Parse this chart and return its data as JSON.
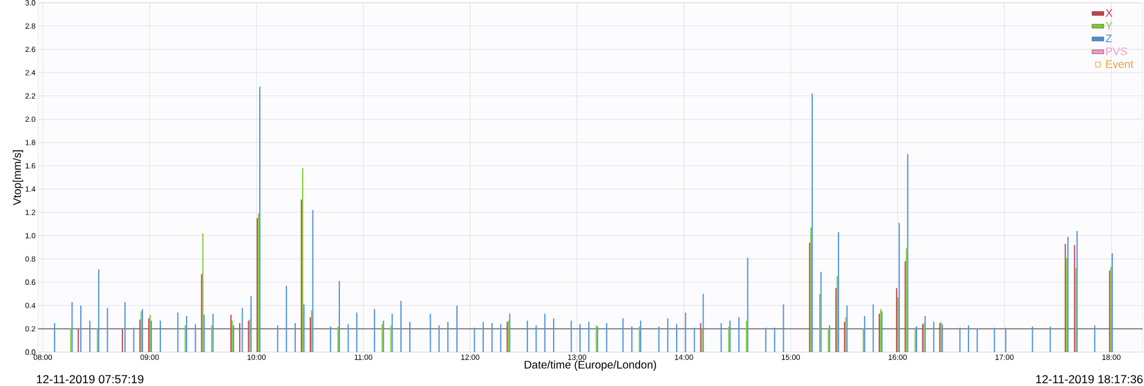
{
  "chart_data": {
    "type": "bar",
    "xlabel": "Date/time (Europe/London)",
    "ylabel": "Vtop[mm/s]",
    "x": [
      8.104,
      8.268,
      8.35,
      8.434,
      8.517,
      8.599,
      8.763,
      8.845,
      8.927,
      9.01,
      9.094,
      9.258,
      9.339,
      9.422,
      9.504,
      9.587,
      9.779,
      9.861,
      9.943,
      10.025,
      10.192,
      10.274,
      10.356,
      10.438,
      10.521,
      10.687,
      10.769,
      10.852,
      10.933,
      11.098,
      11.182,
      11.264,
      11.346,
      11.429,
      11.621,
      11.703,
      11.785,
      11.87,
      12.034,
      12.116,
      12.198,
      12.28,
      12.364,
      12.529,
      12.611,
      12.693,
      12.775,
      12.94,
      13.022,
      13.104,
      13.186,
      13.271,
      13.424,
      13.507,
      13.589,
      13.76,
      13.843,
      13.926,
      14.009,
      14.092,
      14.175,
      14.343,
      14.426,
      14.509,
      14.591,
      14.76,
      14.843,
      14.926,
      15.195,
      15.277,
      15.358,
      15.441,
      15.521,
      15.685,
      15.766,
      15.847,
      16.009,
      16.089,
      16.171,
      16.252,
      16.332,
      16.413,
      16.577,
      16.658,
      16.739,
      16.9,
      17.006,
      17.256,
      17.423,
      17.588,
      17.674,
      17.839,
      18.003
    ],
    "series": [
      {
        "name": "X",
        "color": "#c8404c",
        "values": [
          null,
          null,
          0.2,
          null,
          null,
          null,
          0.2,
          null,
          0.28,
          0.29,
          null,
          null,
          null,
          null,
          0.67,
          null,
          0.32,
          0.25,
          0.27,
          1.15,
          null,
          null,
          null,
          1.31,
          0.3,
          null,
          null,
          null,
          null,
          null,
          null,
          null,
          null,
          null,
          null,
          null,
          null,
          null,
          null,
          null,
          null,
          null,
          0.26,
          null,
          null,
          null,
          null,
          null,
          null,
          null,
          null,
          null,
          null,
          null,
          null,
          null,
          null,
          null,
          null,
          null,
          0.25,
          null,
          null,
          null,
          null,
          null,
          null,
          null,
          0.94,
          null,
          null,
          0.55,
          0.26,
          null,
          null,
          0.33,
          0.55,
          0.78,
          null,
          0.24,
          null,
          0.25,
          null,
          null,
          null,
          null,
          null,
          null,
          null,
          0.93,
          0.92,
          null,
          0.7
        ]
      },
      {
        "name": "Y",
        "color": "#7ccc2a",
        "values": [
          null,
          0.2,
          null,
          null,
          0.2,
          null,
          null,
          null,
          0.35,
          0.32,
          null,
          null,
          0.23,
          null,
          1.02,
          0.23,
          0.27,
          null,
          0.28,
          1.19,
          null,
          null,
          null,
          1.58,
          0.36,
          null,
          0.22,
          null,
          null,
          null,
          0.24,
          0.23,
          null,
          null,
          null,
          null,
          null,
          null,
          null,
          null,
          null,
          null,
          0.27,
          null,
          null,
          null,
          null,
          null,
          null,
          null,
          0.23,
          null,
          null,
          null,
          0.22,
          null,
          null,
          null,
          null,
          null,
          0.2,
          null,
          0.22,
          null,
          0.27,
          null,
          null,
          null,
          1.07,
          0.5,
          0.21,
          0.65,
          0.3,
          0.2,
          null,
          0.37,
          0.47,
          0.89,
          0.21,
          0.25,
          null,
          0.26,
          null,
          null,
          null,
          null,
          null,
          null,
          null,
          0.81,
          0.72,
          null,
          0.73
        ]
      },
      {
        "name": "Z",
        "color": "#4a90dd",
        "values": [
          0.25,
          0.43,
          0.4,
          0.27,
          0.71,
          0.38,
          0.43,
          0.21,
          0.37,
          0.27,
          0.27,
          0.34,
          0.31,
          0.24,
          0.32,
          0.33,
          0.23,
          0.38,
          0.48,
          2.28,
          0.23,
          0.57,
          0.25,
          0.41,
          1.22,
          0.22,
          0.61,
          0.24,
          0.34,
          0.37,
          0.27,
          0.33,
          0.44,
          0.26,
          0.33,
          0.23,
          0.26,
          0.4,
          0.21,
          0.26,
          0.25,
          0.24,
          0.33,
          0.27,
          0.23,
          0.33,
          0.29,
          0.27,
          0.24,
          0.26,
          0.22,
          0.25,
          0.29,
          0.22,
          0.27,
          0.22,
          0.29,
          0.24,
          0.34,
          0.21,
          0.5,
          0.25,
          0.27,
          0.3,
          0.81,
          0.21,
          0.21,
          0.41,
          2.22,
          0.69,
          0.23,
          1.03,
          0.4,
          0.31,
          0.41,
          0.35,
          1.11,
          1.7,
          0.22,
          0.31,
          0.26,
          0.24,
          0.21,
          0.23,
          0.2,
          0.21,
          0.21,
          0.22,
          0.22,
          0.99,
          1.04,
          0.23,
          0.85
        ]
      },
      {
        "name": "PVS",
        "color": "#f59ac0",
        "values": [
          null,
          null,
          null,
          null,
          null,
          null,
          null,
          null,
          null,
          null,
          null,
          null,
          null,
          null,
          null,
          null,
          null,
          null,
          null,
          null,
          null,
          null,
          null,
          null,
          null,
          null,
          null,
          null,
          null,
          null,
          null,
          null,
          null,
          null,
          null,
          null,
          null,
          null,
          null,
          null,
          null,
          null,
          null,
          null,
          null,
          null,
          null,
          null,
          null,
          null,
          null,
          null,
          null,
          null,
          null,
          null,
          null,
          null,
          null,
          null,
          null,
          null,
          null,
          null,
          null,
          null,
          null,
          null,
          null,
          null,
          null,
          null,
          null,
          null,
          null,
          null,
          null,
          null,
          null,
          null,
          null,
          null,
          null,
          null,
          null,
          null,
          null,
          null,
          null,
          null,
          null,
          null,
          null
        ]
      },
      {
        "name": "Event",
        "type": "scatter",
        "marker": "square",
        "color": "#f0a030",
        "values": [
          null,
          null,
          null,
          null,
          null,
          null,
          null,
          null,
          null,
          null,
          null,
          null,
          null,
          null,
          null,
          null,
          null,
          null,
          null,
          null,
          null,
          null,
          null,
          null,
          null,
          null,
          null,
          null,
          null,
          null,
          null,
          null,
          null,
          null,
          null,
          null,
          null,
          null,
          null,
          null,
          null,
          null,
          null,
          null,
          null,
          null,
          null,
          null,
          null,
          null,
          null,
          null,
          null,
          null,
          null,
          null,
          null,
          null,
          null,
          null,
          null,
          null,
          null,
          null,
          null,
          null,
          null,
          null,
          null,
          null,
          null,
          null,
          null,
          null,
          null,
          null,
          null,
          null,
          null,
          null,
          null,
          null,
          null,
          null,
          null,
          null,
          null,
          null,
          null,
          null,
          null,
          null,
          null
        ]
      }
    ],
    "xlim": [
      7.95528,
      18.29333
    ],
    "xticks": [
      {
        "value": 8,
        "label": "08:00"
      },
      {
        "value": 9,
        "label": "09:00"
      },
      {
        "value": 10,
        "label": "10:00"
      },
      {
        "value": 11,
        "label": "11:00"
      },
      {
        "value": 12,
        "label": "12:00"
      },
      {
        "value": 13,
        "label": "13:00"
      },
      {
        "value": 14,
        "label": "14:00"
      },
      {
        "value": 15,
        "label": "15:00"
      },
      {
        "value": 16,
        "label": "16:00"
      },
      {
        "value": 17,
        "label": "17:00"
      },
      {
        "value": 18,
        "label": "18:00"
      }
    ],
    "ylim": [
      0,
      3
    ],
    "yticks": [
      {
        "value": 0,
        "label": "0.0"
      },
      0.2,
      0.4,
      0.6,
      0.8,
      {
        "value": 1,
        "label": "1.0"
      },
      1.2,
      1.4,
      1.6,
      1.8,
      {
        "value": 2,
        "label": "2.0"
      },
      2.2,
      2.4,
      2.6,
      2.8,
      {
        "value": 3,
        "label": "3.0"
      }
    ],
    "ref_lines": [
      {
        "axis": "y",
        "value": 0.2,
        "color": "#333333"
      }
    ],
    "grid": true,
    "legend": "top right",
    "annotations": [
      "12-11-2019 07:57:19",
      "12-11-2019 18:17:36"
    ]
  }
}
